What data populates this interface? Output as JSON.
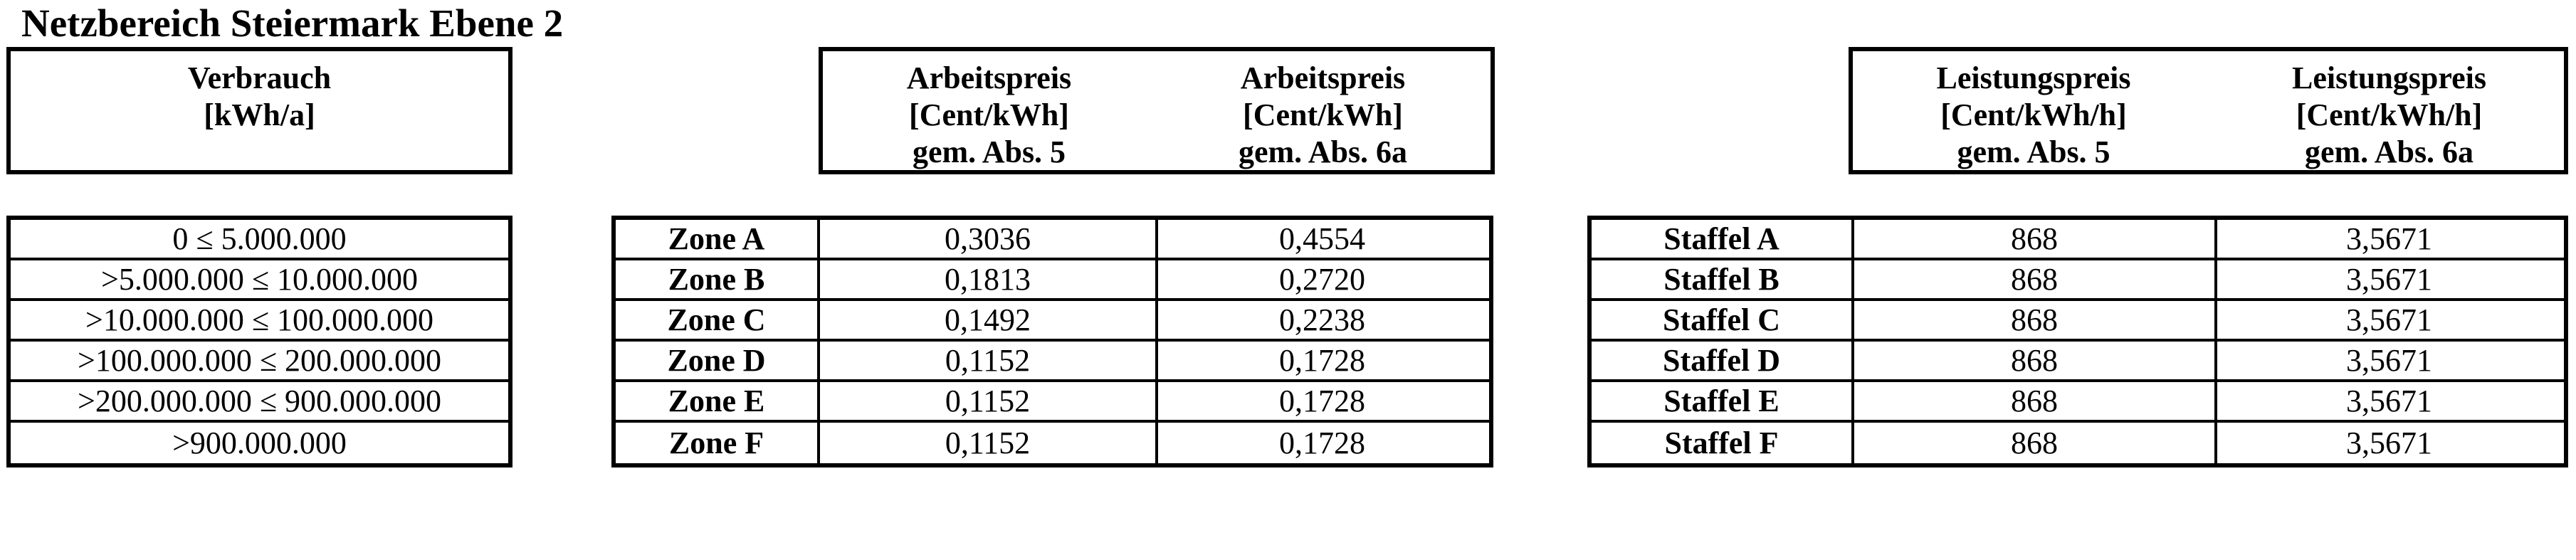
{
  "page": {
    "title": "Netzbereich Steiermark Ebene 2"
  },
  "colors": {
    "text": "#000000",
    "border": "#000000",
    "background": "#ffffff"
  },
  "headers": {
    "verbrauch": {
      "line1": "Verbrauch",
      "line2": "[kWh/a]",
      "line3": ""
    },
    "arbeitspreis_abs5": {
      "line1": "Arbeitspreis",
      "line2": "[Cent/kWh]",
      "line3": "gem. Abs. 5"
    },
    "arbeitspreis_abs6a": {
      "line1": "Arbeitspreis",
      "line2": "[Cent/kWh]",
      "line3": "gem. Abs. 6a"
    },
    "leistungspreis_abs5": {
      "line1": "Leistungspreis",
      "line2": "[Cent/kWh/h]",
      "line3": "gem. Abs. 5"
    },
    "leistungspreis_abs6a": {
      "line1": "Leistungspreis",
      "line2": "[Cent/kWh/h]",
      "line3": "gem. Abs. 6a"
    }
  },
  "tables": {
    "verbrauch": {
      "rows": [
        "0 ≤ 5.000.000",
        ">5.000.000 ≤ 10.000.000",
        ">10.000.000 ≤ 100.000.000",
        ">100.000.000 ≤ 200.000.000",
        ">200.000.000 ≤ 900.000.000",
        ">900.000.000"
      ]
    },
    "arbeitspreis": {
      "rows": [
        {
          "label": "Zone A",
          "abs5": "0,3036",
          "abs6a": "0,4554"
        },
        {
          "label": "Zone B",
          "abs5": "0,1813",
          "abs6a": "0,2720"
        },
        {
          "label": "Zone C",
          "abs5": "0,1492",
          "abs6a": "0,2238"
        },
        {
          "label": "Zone D",
          "abs5": "0,1152",
          "abs6a": "0,1728"
        },
        {
          "label": "Zone E",
          "abs5": "0,1152",
          "abs6a": "0,1728"
        },
        {
          "label": "Zone F",
          "abs5": "0,1152",
          "abs6a": "0,1728"
        }
      ]
    },
    "leistungspreis": {
      "rows": [
        {
          "label": "Staffel A",
          "abs5": "868",
          "abs6a": "3,5671"
        },
        {
          "label": "Staffel B",
          "abs5": "868",
          "abs6a": "3,5671"
        },
        {
          "label": "Staffel C",
          "abs5": "868",
          "abs6a": "3,5671"
        },
        {
          "label": "Staffel D",
          "abs5": "868",
          "abs6a": "3,5671"
        },
        {
          "label": "Staffel E",
          "abs5": "868",
          "abs6a": "3,5671"
        },
        {
          "label": "Staffel F",
          "abs5": "868",
          "abs6a": "3,5671"
        }
      ]
    }
  }
}
